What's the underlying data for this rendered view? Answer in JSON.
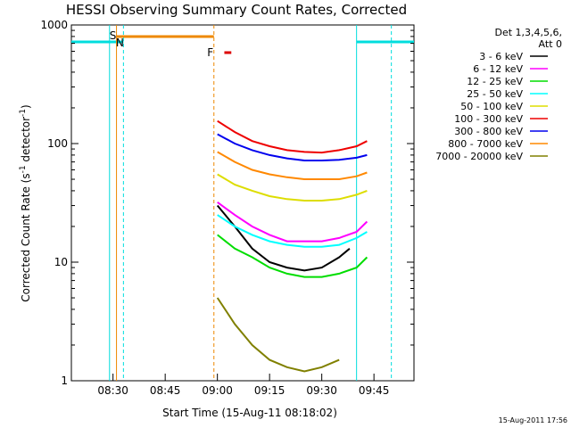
{
  "chart_data": {
    "type": "line",
    "title": "HESSI Observing Summary Count Rates, Corrected",
    "xlabel": "Start Time (15-Aug-11 08:18:02)",
    "ylabel_main": "Corrected Count Rate (s",
    "ylabel_sup1": "-1",
    "ylabel_mid": " detector",
    "ylabel_sup2": "-1",
    "ylabel_end": ")",
    "yscale": "log",
    "ylim": [
      1,
      1000
    ],
    "xlim": [
      "08:18:02",
      "09:56:30"
    ],
    "x_ticks": [
      "08:30",
      "08:45",
      "09:00",
      "09:15",
      "09:30",
      "09:45"
    ],
    "y_ticks": [
      "1",
      "10",
      "100",
      "1000"
    ],
    "legend_header": "Det 1,3,4,5,6,",
    "legend_header2": "Att 0",
    "legend_position": "right",
    "series": [
      {
        "name": "3 - 6 keV",
        "color": "#000000",
        "x": [
          "09:00",
          "09:05",
          "09:10",
          "09:15",
          "09:20",
          "09:25",
          "09:30",
          "09:35",
          "09:38"
        ],
        "values": [
          30,
          20,
          13,
          10,
          9,
          8.5,
          9,
          11,
          13
        ]
      },
      {
        "name": "6 - 12 keV",
        "color": "#ff00ff",
        "x": [
          "09:00",
          "09:05",
          "09:10",
          "09:15",
          "09:20",
          "09:25",
          "09:30",
          "09:35",
          "09:40",
          "09:43"
        ],
        "values": [
          32,
          25,
          20,
          17,
          15,
          15,
          15,
          16,
          18,
          22
        ]
      },
      {
        "name": "12 - 25 keV",
        "color": "#00dd00",
        "x": [
          "09:00",
          "09:05",
          "09:10",
          "09:15",
          "09:20",
          "09:25",
          "09:30",
          "09:35",
          "09:40",
          "09:43"
        ],
        "values": [
          17,
          13,
          11,
          9,
          8,
          7.5,
          7.5,
          8,
          9,
          11
        ]
      },
      {
        "name": "25 - 50 keV",
        "color": "#00ffff",
        "x": [
          "09:00",
          "09:05",
          "09:10",
          "09:15",
          "09:20",
          "09:25",
          "09:30",
          "09:35",
          "09:40",
          "09:43"
        ],
        "values": [
          25,
          20,
          17,
          15,
          14,
          13.5,
          13.5,
          14,
          16,
          18
        ]
      },
      {
        "name": "50 - 100 keV",
        "color": "#dddd00",
        "x": [
          "09:00",
          "09:05",
          "09:10",
          "09:15",
          "09:20",
          "09:25",
          "09:30",
          "09:35",
          "09:40",
          "09:43"
        ],
        "values": [
          55,
          45,
          40,
          36,
          34,
          33,
          33,
          34,
          37,
          40
        ]
      },
      {
        "name": "100 - 300 keV",
        "color": "#ee0000",
        "x": [
          "09:00",
          "09:05",
          "09:10",
          "09:15",
          "09:20",
          "09:25",
          "09:30",
          "09:35",
          "09:40",
          "09:43"
        ],
        "values": [
          155,
          125,
          105,
          95,
          88,
          85,
          84,
          88,
          95,
          105
        ]
      },
      {
        "name": "300 - 800 keV",
        "color": "#0000ee",
        "x": [
          "09:00",
          "09:05",
          "09:10",
          "09:15",
          "09:20",
          "09:25",
          "09:30",
          "09:35",
          "09:40",
          "09:43"
        ],
        "values": [
          120,
          100,
          88,
          80,
          75,
          72,
          72,
          73,
          76,
          80
        ]
      },
      {
        "name": "800 - 7000 keV",
        "color": "#ff8800",
        "x": [
          "09:00",
          "09:05",
          "09:10",
          "09:15",
          "09:20",
          "09:25",
          "09:30",
          "09:35",
          "09:40",
          "09:43"
        ],
        "values": [
          85,
          70,
          60,
          55,
          52,
          50,
          50,
          50,
          53,
          57
        ]
      },
      {
        "name": "7000 - 20000 keV",
        "color": "#808000",
        "x": [
          "09:00",
          "09:05",
          "09:10",
          "09:15",
          "09:20",
          "09:25",
          "09:30",
          "09:35"
        ],
        "values": [
          5,
          3,
          2,
          1.5,
          1.3,
          1.2,
          1.3,
          1.5
        ]
      }
    ],
    "annotations": [
      {
        "label": "S",
        "color": "#dd8800",
        "x": "08:31"
      },
      {
        "label": "N",
        "color": "#00cccc",
        "x": "08:33"
      },
      {
        "label": "F",
        "color": "#dd3300",
        "x": "08:59"
      }
    ],
    "timestamp": "15-Aug-2011 17:56"
  }
}
